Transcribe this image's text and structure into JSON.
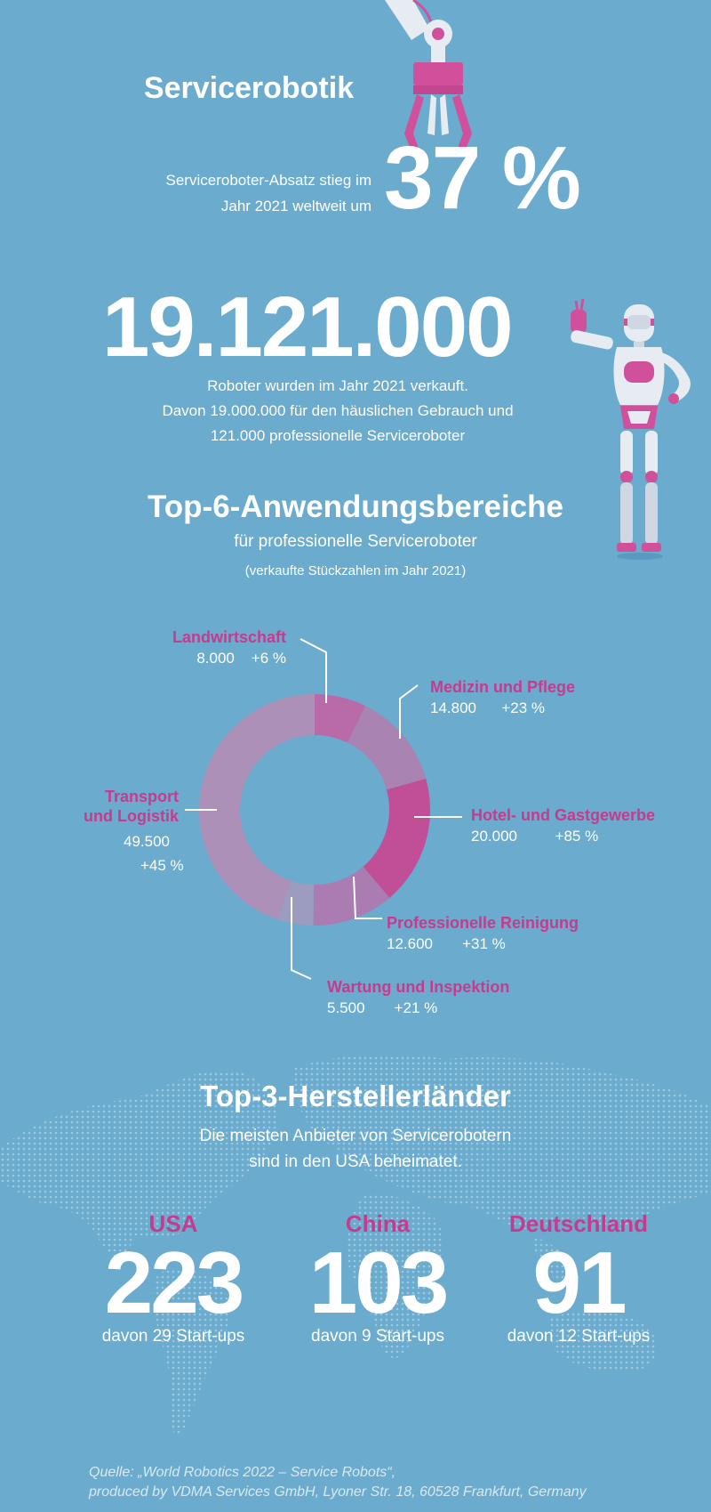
{
  "header": {
    "title": "Servicerobotik",
    "growth_text_line1": "Serviceroboter-Absatz stieg im",
    "growth_text_line2": "Jahr 2021 weltweit um",
    "growth_value": "37 %"
  },
  "sales": {
    "total": "19.121.000",
    "line1": "Roboter wurden im Jahr 2021 verkauft.",
    "line2": "Davon 19.000.000 für den häuslichen Gebrauch und",
    "line3": "121.000 professionelle Serviceroboter"
  },
  "top6": {
    "title": "Top-6-Anwendungsbereiche",
    "subtitle": "für professionelle Serviceroboter",
    "note": "(verkaufte Stückzahlen im Jahr 2021)"
  },
  "chart_data": {
    "type": "pie",
    "segments": [
      {
        "name": "Landwirtschaft",
        "value": 8000,
        "label": "8.000",
        "growth": "+6 %",
        "color": "#b96aa8"
      },
      {
        "name": "Medizin und Pflege",
        "value": 14800,
        "label": "14.800",
        "growth": "+23 %",
        "color": "#a984b3"
      },
      {
        "name": "Hotel- und Gastgewerbe",
        "value": 20000,
        "label": "20.000",
        "growth": "+85 %",
        "color": "#c04f98"
      },
      {
        "name": "Professionelle Reinigung",
        "value": 12600,
        "label": "12.600",
        "growth": "+31 %",
        "color": "#ab7cb2"
      },
      {
        "name": "Wartung und Inspektion",
        "value": 5500,
        "label": "5.500",
        "growth": "+21 %",
        "color": "#9b9cc0"
      },
      {
        "name": "Transport und Logistik",
        "value": 49500,
        "label": "49.500",
        "growth": "+45 %",
        "color": "#ad90b8"
      }
    ],
    "labels": {
      "landwirtschaft": "Landwirtschaft",
      "medizin": "Medizin und Pflege",
      "hotel": "Hotel- und Gastgewerbe",
      "reinigung": "Professionelle Reinigung",
      "wartung": "Wartung und Inspektion",
      "transport_line1": "Transport",
      "transport_line2": "und Logistik"
    }
  },
  "top3": {
    "title": "Top-3-Herstellerländer",
    "subtitle_line1": "Die meisten Anbieter von Servicerobotern",
    "subtitle_line2": "sind in den USA beheimatet.",
    "countries": [
      {
        "name": "USA",
        "value": "223",
        "startups": "davon 29 Start-ups"
      },
      {
        "name": "China",
        "value": "103",
        "startups": "davon 9 Start-ups"
      },
      {
        "name": "Deutschland",
        "value": "91",
        "startups": "davon 12 Start-ups"
      }
    ]
  },
  "source": {
    "line1": "Quelle: „World Robotics 2022 – Service Robots“,",
    "line2": "produced by VDMA Services GmbH, Lyoner Str. 18, 60528 Frankfurt, Germany"
  },
  "colors": {
    "background": "#6aabce",
    "accent": "#c83a8e",
    "robot_white": "#e6ecf2",
    "robot_pink": "#d0509c"
  },
  "icons": [
    "gripper-arm-icon",
    "humanoid-robot-icon",
    "dotted-world-map"
  ]
}
